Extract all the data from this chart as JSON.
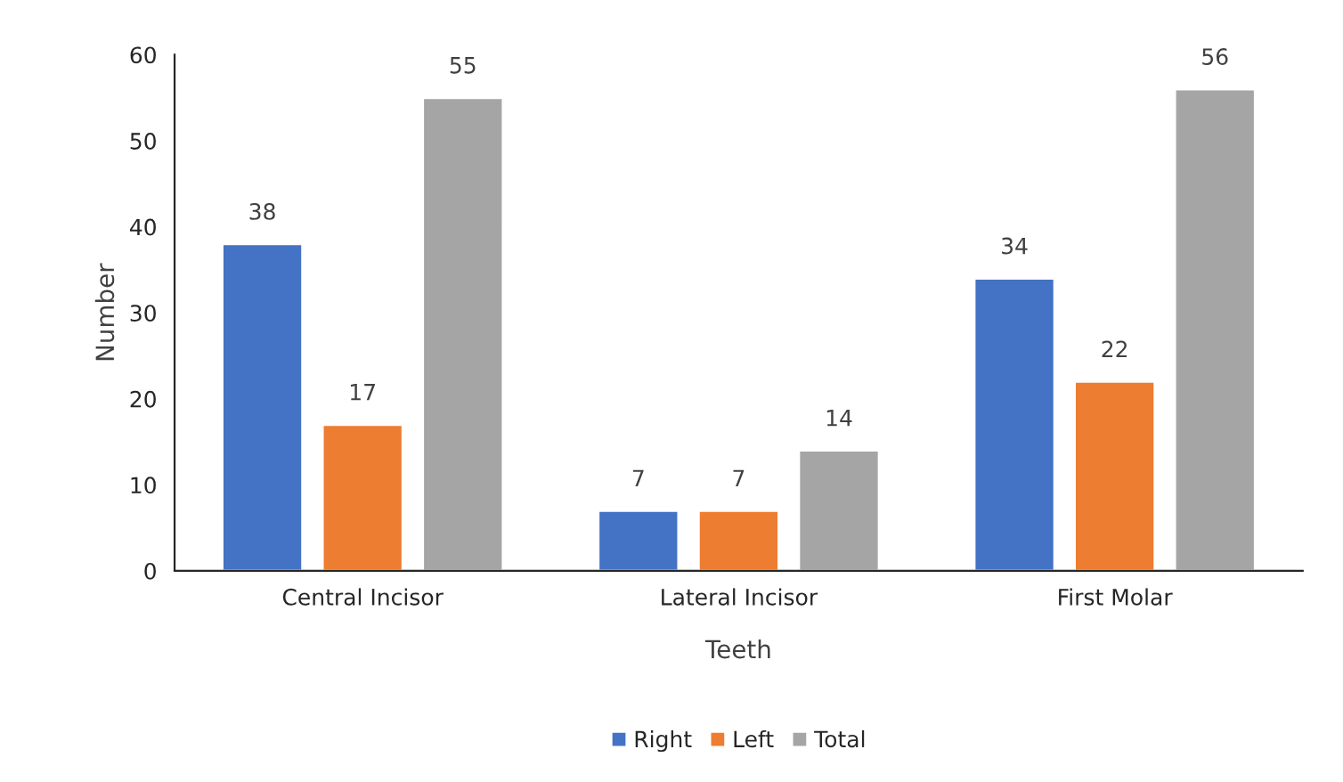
{
  "chart_data": {
    "type": "bar",
    "xlabel": "Teeth",
    "ylabel": "Number",
    "categories": [
      "Central Incisor",
      "Lateral Incisor",
      "First Molar"
    ],
    "series": [
      {
        "name": "Right",
        "color": "#4472c4",
        "values": [
          38,
          7,
          34
        ]
      },
      {
        "name": "Left",
        "color": "#ed7d31",
        "values": [
          17,
          7,
          22
        ]
      },
      {
        "name": "Total",
        "color": "#a5a5a5",
        "values": [
          55,
          14,
          56
        ]
      }
    ],
    "ylim": [
      0,
      60
    ],
    "yticks": [
      0,
      10,
      20,
      30,
      40,
      50,
      60
    ],
    "grid": false,
    "legend": "bottom",
    "data_labels": true
  }
}
